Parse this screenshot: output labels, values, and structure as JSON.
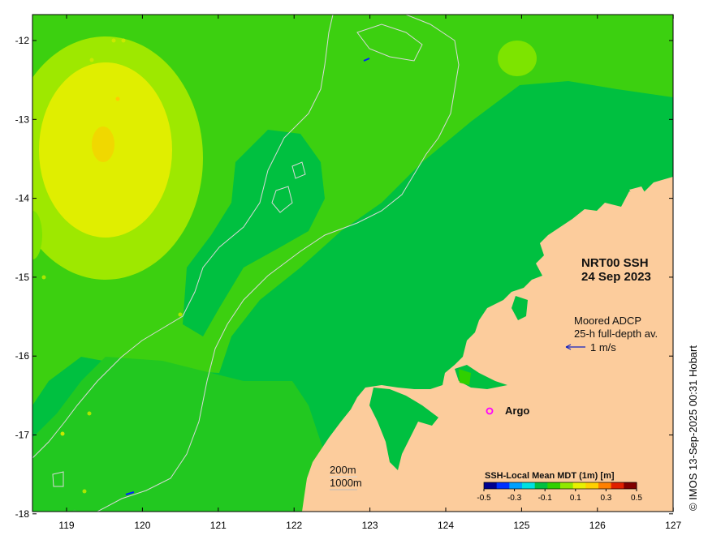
{
  "map": {
    "product_title": "NRT00 SSH",
    "product_date": "24 Sep 2023",
    "credit": "© IMOS 13-Sep-2025 00:31 Hobart",
    "lon_ticks": [
      "119",
      "120",
      "121",
      "122",
      "123",
      "124",
      "125",
      "126",
      "127"
    ],
    "lat_ticks": [
      "-12",
      "-13",
      "-14",
      "-15",
      "-16",
      "-17",
      "-18"
    ],
    "adcp_legend": {
      "title": "Moored ADCP",
      "subtitle": "25-h full-depth av.",
      "scale_label": "1 m/s",
      "arrow_color": "#1020c0"
    },
    "argo_legend": {
      "label": "Argo",
      "marker_color": "#ff00ff"
    },
    "isobaths": {
      "label_200": "200m",
      "label_1000": "1000m"
    },
    "colorbar": {
      "title": "SSH-Local Mean MDT (1m) [m]",
      "tick_labels": [
        "-0.5",
        "-0.3",
        "-0.1",
        "0.1",
        "0.3",
        "0.5"
      ],
      "colors": [
        "#00008f",
        "#0030ff",
        "#00a0ff",
        "#00e0e0",
        "#00c040",
        "#30d000",
        "#90e800",
        "#e8f000",
        "#ffd000",
        "#ff8000",
        "#e02000",
        "#800000"
      ]
    },
    "palette": {
      "land": "#fccc9c",
      "ssh_mid_green": "#00c040",
      "ssh_light_green": "#3cd010",
      "ssh_yellow_green": "#9ee800",
      "ssh_yellow": "#e6ee00"
    }
  }
}
